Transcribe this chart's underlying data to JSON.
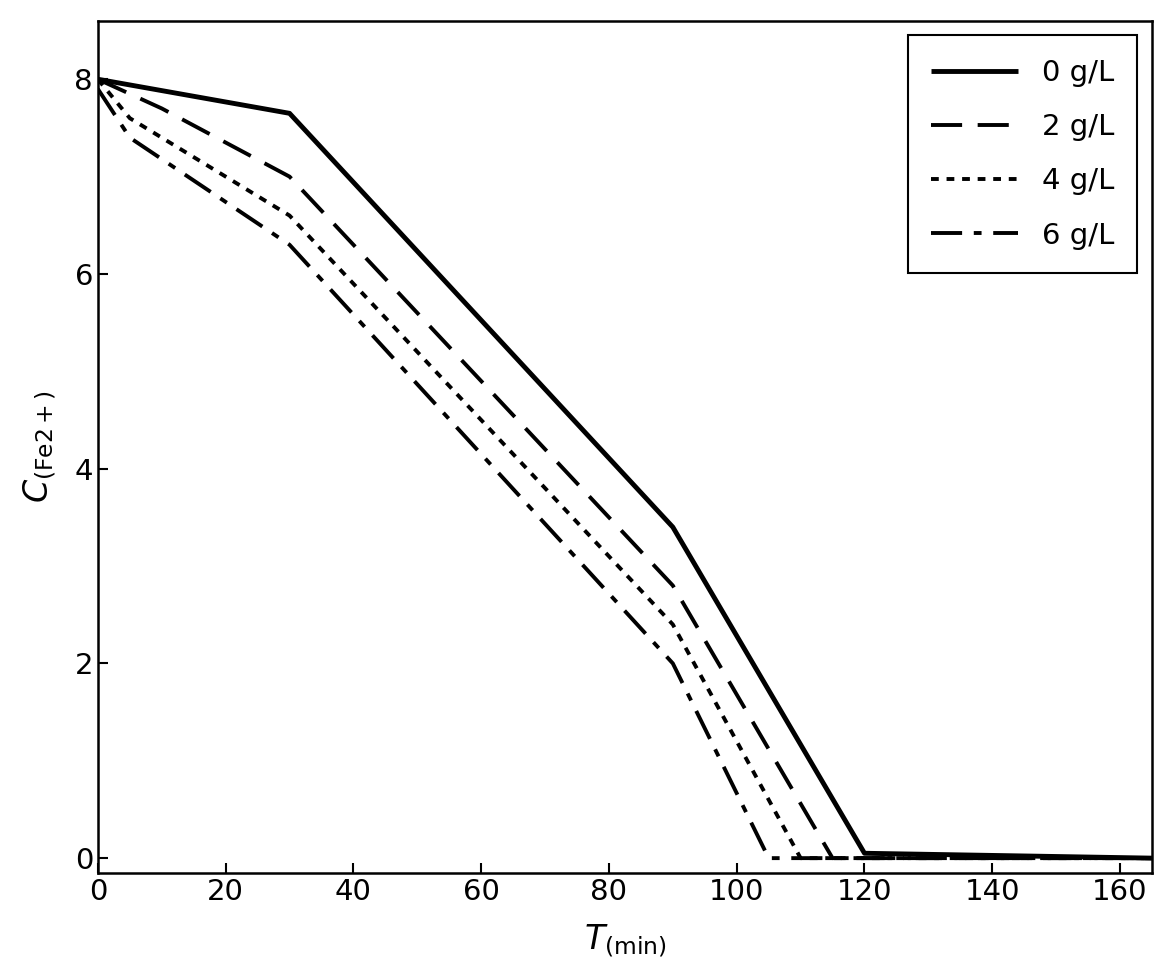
{
  "series": [
    {
      "label": "0 g/L",
      "linestyle": "solid",
      "linewidth": 3.5,
      "x": [
        0,
        30,
        90,
        120,
        165
      ],
      "y": [
        8.0,
        7.65,
        3.4,
        0.05,
        0.0
      ]
    },
    {
      "label": "2 g/L",
      "linestyle": "dashed",
      "linewidth": 2.8,
      "x": [
        0,
        10,
        30,
        90,
        115,
        165
      ],
      "y": [
        8.0,
        7.7,
        7.0,
        2.8,
        0.0,
        0.0
      ]
    },
    {
      "label": "4 g/L",
      "linestyle": "dotted",
      "linewidth": 2.8,
      "x": [
        0,
        5,
        30,
        90,
        110,
        165
      ],
      "y": [
        8.0,
        7.6,
        6.6,
        2.4,
        0.0,
        0.0
      ]
    },
    {
      "label": "6 g/L",
      "linestyle": "dashdot",
      "linewidth": 2.8,
      "x": [
        0,
        5,
        30,
        90,
        105,
        165
      ],
      "y": [
        7.9,
        7.4,
        6.3,
        2.0,
        0.0,
        0.0
      ]
    }
  ],
  "xlabel_text": "T",
  "xlabel_sub": "(min)",
  "ylabel_text": "C",
  "ylabel_sub": "(Fe2+)",
  "xlim": [
    0,
    165
  ],
  "ylim": [
    -0.15,
    8.6
  ],
  "xticks": [
    0,
    20,
    40,
    60,
    80,
    100,
    120,
    140,
    160
  ],
  "yticks": [
    0,
    2,
    4,
    6,
    8
  ],
  "legend_loc": "upper right",
  "background_color": "#ffffff",
  "line_color": "#000000",
  "tick_labelsize": 21,
  "legend_fontsize": 21,
  "label_fontsize": 24
}
